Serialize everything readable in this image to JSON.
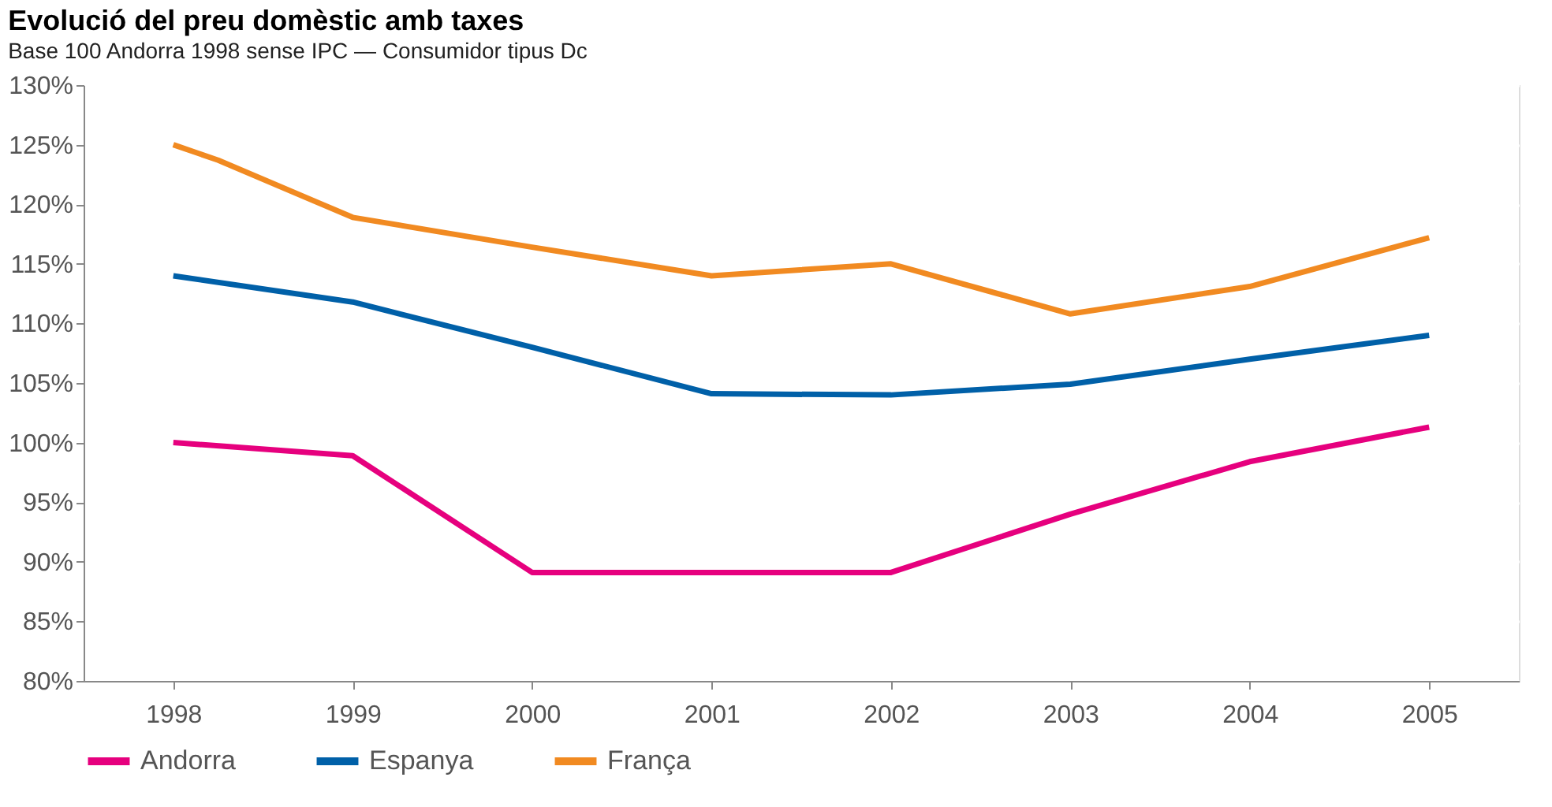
{
  "chart_data": {
    "type": "line",
    "title": "Evolució del preu domèstic amb taxes",
    "subtitle": "Base 100 Andorra 1998 sense IPC — Consumidor tipus Dc",
    "x": [
      1998,
      1999,
      2000,
      2001,
      2002,
      2003,
      2004,
      2005
    ],
    "series": [
      {
        "name": "Andorra",
        "color": "#e6007e",
        "values": [
          100,
          98.9,
          89.1,
          89.1,
          89.1,
          94,
          98.4,
          101.3
        ]
      },
      {
        "name": "Espanya",
        "color": "#0060a8",
        "values": [
          114,
          111.8,
          108,
          104.1,
          104,
          104.9,
          107,
          109
        ]
      },
      {
        "name": "França",
        "color": "#f18a21",
        "x": [
          1998,
          1998.25,
          1999,
          2000,
          2001,
          2002,
          2003,
          2004,
          2005
        ],
        "values": [
          125,
          123.7,
          118.9,
          116.4,
          114,
          115,
          110.8,
          113.1,
          117.2
        ]
      }
    ],
    "xlim": [
      1997.5,
      2005.5
    ],
    "xticks": [
      1998,
      1999,
      2000,
      2001,
      2002,
      2003,
      2004,
      2005
    ],
    "ylim": [
      80,
      130
    ],
    "yticks": [
      {
        "value": 80,
        "label": "80%"
      },
      {
        "value": 85,
        "label": "85%"
      },
      {
        "value": 90,
        "label": "90%"
      },
      {
        "value": 95,
        "label": "95%"
      },
      {
        "value": 100,
        "label": "100%"
      },
      {
        "value": 105,
        "label": "105%"
      },
      {
        "value": 110,
        "label": "110%"
      },
      {
        "value": 115,
        "label": "115%"
      },
      {
        "value": 120,
        "label": "120%"
      },
      {
        "value": 125,
        "label": "125%"
      },
      {
        "value": 130,
        "label": "130%"
      }
    ],
    "grid": "y",
    "legend": "bottom",
    "marker": "none",
    "line_style": "solid"
  }
}
